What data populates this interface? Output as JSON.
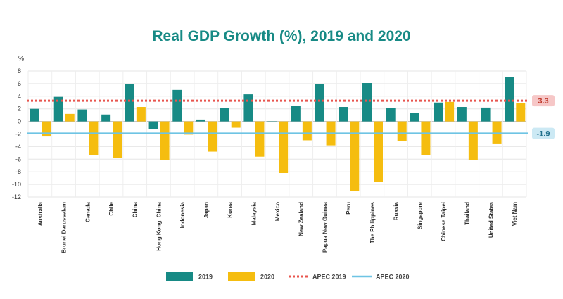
{
  "chart_data": {
    "type": "bar",
    "title": "Real GDP Growth (%), 2019 and 2020",
    "ylabel": "%",
    "xlabel": "",
    "ylim": [
      -12,
      8
    ],
    "yticks": [
      8,
      6,
      4,
      2,
      0,
      -2,
      -4,
      -6,
      -8,
      -10,
      -12
    ],
    "grid": true,
    "legend_position": "bottom",
    "categories": [
      "Australia",
      "Brunei Darussalam",
      "Canada",
      "Chile",
      "China",
      "Hong Kong, China",
      "Indonesia",
      "Japan",
      "Korea",
      "Malaysia",
      "Mexico",
      "New Zealand",
      "Papua New Guinea",
      "Peru",
      "The Philippines",
      "Russia",
      "Singapore",
      "Chinese Taipei",
      "Thailand",
      "United States",
      "Viet Nam"
    ],
    "series": [
      {
        "name": "2019",
        "color": "#178a85",
        "values": [
          2.0,
          3.9,
          1.9,
          1.1,
          5.9,
          -1.2,
          5.0,
          0.3,
          2.1,
          4.3,
          -0.1,
          2.5,
          5.9,
          2.3,
          6.1,
          2.1,
          1.4,
          3.0,
          2.3,
          2.2,
          7.1
        ]
      },
      {
        "name": "2020",
        "color": "#f5bd0f",
        "values": [
          -2.4,
          1.2,
          -5.4,
          -5.8,
          2.3,
          -6.1,
          -2.1,
          -4.8,
          -1.0,
          -5.6,
          -8.2,
          -3.0,
          -3.8,
          -11.1,
          -9.6,
          -3.1,
          -5.4,
          3.1,
          -6.1,
          -3.5,
          2.9
        ]
      }
    ],
    "reference_lines": [
      {
        "name": "APEC 2019",
        "value": 3.3,
        "label": "3.3",
        "color": "#e8554e",
        "style": "dotted"
      },
      {
        "name": "APEC 2020",
        "value": -1.9,
        "label": "-1.9",
        "color": "#6ec4e4",
        "style": "solid"
      }
    ]
  }
}
